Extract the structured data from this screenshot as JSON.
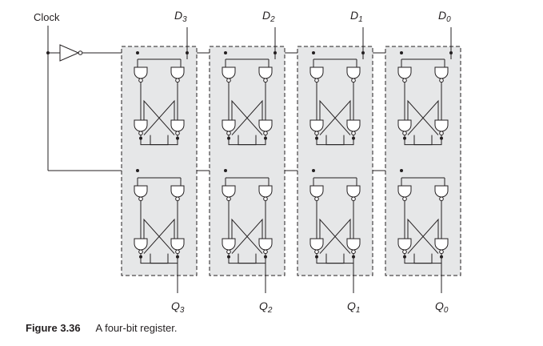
{
  "diagram": {
    "clock_label": "Clock",
    "stages": [
      {
        "input_main": "D",
        "input_sub": "3",
        "output_main": "Q",
        "output_sub": "3"
      },
      {
        "input_main": "D",
        "input_sub": "2",
        "output_main": "Q",
        "output_sub": "2"
      },
      {
        "input_main": "D",
        "input_sub": "1",
        "output_main": "Q",
        "output_sub": "1"
      },
      {
        "input_main": "D",
        "input_sub": "0",
        "output_main": "Q",
        "output_sub": "0"
      }
    ]
  },
  "caption": {
    "figure_number": "Figure 3.36",
    "text": "A four-bit register."
  },
  "colors": {
    "line": "#231f20",
    "block_fill": "#e6e7e8"
  }
}
